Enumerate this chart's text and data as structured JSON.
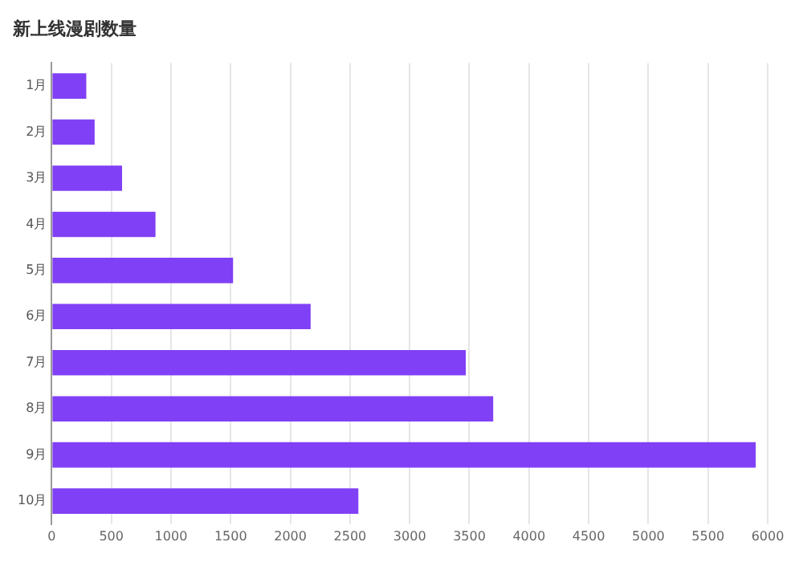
{
  "chart_data": {
    "type": "bar",
    "orientation": "horizontal",
    "title": "新上线漫剧数量",
    "categories": [
      "1月",
      "2月",
      "3月",
      "4月",
      "5月",
      "6月",
      "7月",
      "8月",
      "9月",
      "10月"
    ],
    "values": [
      290,
      360,
      590,
      870,
      1520,
      2170,
      3470,
      3700,
      5900,
      2570
    ],
    "color": "#8040f5",
    "xlim": [
      0,
      6000
    ],
    "xticks": [
      0,
      500,
      1000,
      1500,
      2000,
      2500,
      3000,
      3500,
      4000,
      4500,
      5000,
      5500,
      6000
    ],
    "grid": "x",
    "legend": false
  }
}
